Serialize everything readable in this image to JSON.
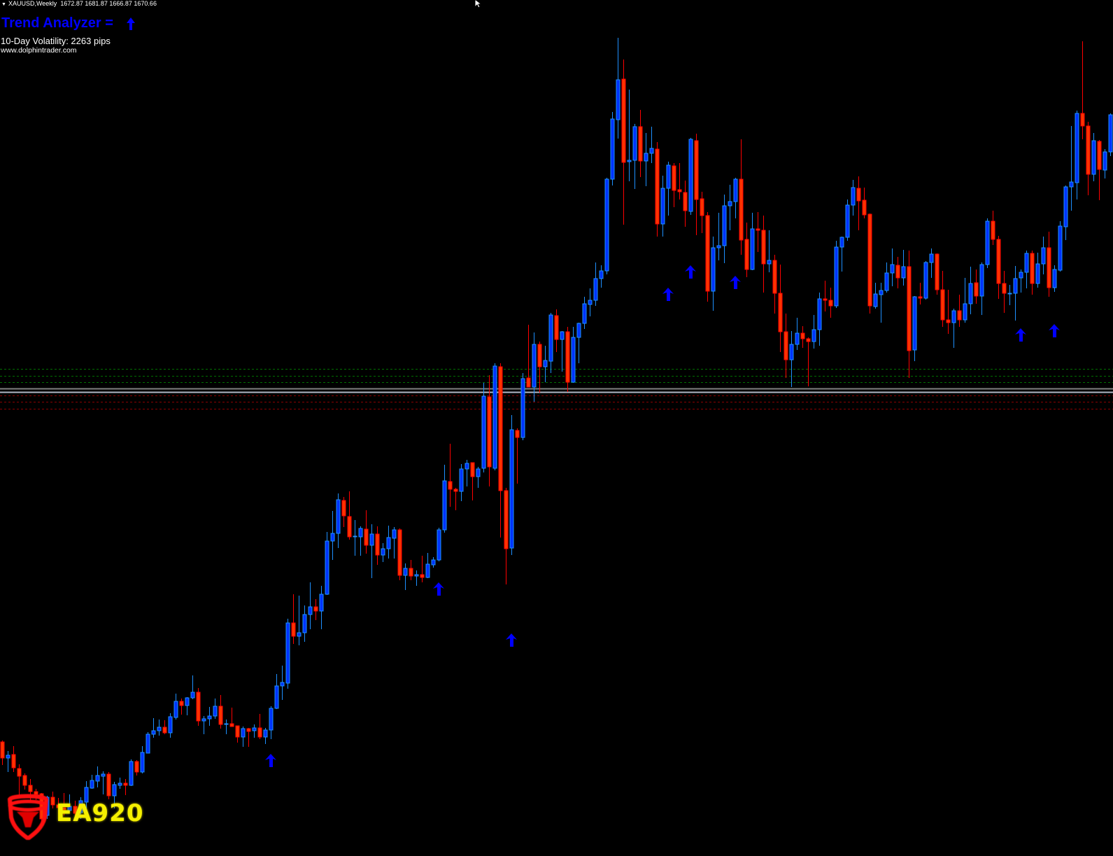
{
  "header": {
    "symbol_label": "XAUUSD,Weekly",
    "ohlc_label": "1672.87 1681.87 1666.87 1670.66"
  },
  "indicator": {
    "title": "Trend Analyzer =",
    "trend_icon": "arrow-up-icon",
    "volatility_label": "10-Day Volatility: 2263 pips",
    "website": "www.dolphintrader.com"
  },
  "logo": {
    "text": "EA920",
    "icon": "bull-shield-icon"
  },
  "colors": {
    "background": "#000000",
    "bull_body": "#0033ff",
    "bull_outline": "#1e90ff",
    "bear_body": "#ff3300",
    "bear_outline": "#ff0000",
    "signal_arrow": "#0000ff",
    "title": "#0000ff",
    "level_green": "#007000",
    "level_red": "#8b0000",
    "level_gray": "#808080",
    "level_light": "#b0b8c8"
  },
  "chart_data": {
    "type": "candlestick",
    "title": "",
    "xlabel": "",
    "ylabel": "",
    "grid": false,
    "legend": "none",
    "candle_format": [
      "open",
      "high",
      "low",
      "close"
    ],
    "candles": [
      [
        940,
        942,
        907,
        917
      ],
      [
        917,
        927,
        897,
        921
      ],
      [
        922,
        934,
        897,
        903
      ],
      [
        902,
        908,
        864,
        891
      ],
      [
        892,
        895,
        872,
        878
      ],
      [
        878,
        887,
        856,
        869
      ],
      [
        869,
        873,
        857,
        865
      ],
      [
        866,
        867,
        822,
        830
      ],
      [
        835,
        863,
        830,
        861
      ],
      [
        861,
        869,
        845,
        850
      ],
      [
        850,
        860,
        837,
        846
      ],
      [
        846,
        867,
        835,
        843
      ],
      [
        842,
        865,
        840,
        848
      ],
      [
        848,
        856,
        827,
        838
      ],
      [
        839,
        861,
        830,
        856
      ],
      [
        854,
        884,
        840,
        875
      ],
      [
        874,
        893,
        873,
        885
      ],
      [
        884,
        905,
        875,
        892
      ],
      [
        891,
        898,
        865,
        894
      ],
      [
        894,
        897,
        858,
        863
      ],
      [
        863,
        883,
        845,
        879
      ],
      [
        878,
        889,
        873,
        881
      ],
      [
        881,
        887,
        864,
        878
      ],
      [
        878,
        915,
        877,
        912
      ],
      [
        912,
        914,
        892,
        897
      ],
      [
        897,
        934,
        895,
        925
      ],
      [
        924,
        954,
        924,
        951
      ],
      [
        951,
        974,
        946,
        956
      ],
      [
        956,
        972,
        949,
        961
      ],
      [
        961,
        971,
        951,
        953
      ],
      [
        953,
        981,
        946,
        976
      ],
      [
        975,
        1009,
        972,
        998
      ],
      [
        998,
        1002,
        979,
        992
      ],
      [
        992,
        1004,
        978,
        1003
      ],
      [
        1003,
        1035,
        1001,
        1011
      ],
      [
        1011,
        1017,
        963,
        970
      ],
      [
        970,
        977,
        951,
        973
      ],
      [
        973,
        990,
        963,
        977
      ],
      [
        977,
        1002,
        973,
        991
      ],
      [
        991,
        1007,
        959,
        965
      ],
      [
        966,
        972,
        951,
        966
      ],
      [
        966,
        989,
        962,
        962
      ],
      [
        963,
        963,
        939,
        947
      ],
      [
        947,
        962,
        933,
        959
      ],
      [
        959,
        960,
        933,
        955
      ],
      [
        956,
        965,
        946,
        960
      ],
      [
        960,
        980,
        944,
        947
      ],
      [
        947,
        960,
        937,
        957
      ],
      [
        957,
        991,
        944,
        988
      ],
      [
        988,
        1037,
        987,
        1020
      ],
      [
        1020,
        1049,
        1000,
        1025
      ],
      [
        1024,
        1116,
        1016,
        1110
      ],
      [
        1110,
        1151,
        1080,
        1091
      ],
      [
        1091,
        1149,
        1078,
        1096
      ],
      [
        1096,
        1135,
        1083,
        1122
      ],
      [
        1122,
        1168,
        1101,
        1133
      ],
      [
        1133,
        1144,
        1114,
        1127
      ],
      [
        1127,
        1163,
        1101,
        1151
      ],
      [
        1151,
        1240,
        1150,
        1227
      ],
      [
        1227,
        1270,
        1200,
        1238
      ],
      [
        1238,
        1295,
        1217,
        1286
      ],
      [
        1285,
        1290,
        1247,
        1263
      ],
      [
        1262,
        1298,
        1229,
        1233
      ],
      [
        1234,
        1257,
        1206,
        1234
      ],
      [
        1233,
        1248,
        1206,
        1245
      ],
      [
        1244,
        1271,
        1209,
        1221
      ],
      [
        1221,
        1251,
        1174,
        1237
      ],
      [
        1237,
        1248,
        1193,
        1207
      ],
      [
        1207,
        1224,
        1197,
        1216
      ],
      [
        1216,
        1249,
        1202,
        1232
      ],
      [
        1231,
        1247,
        1202,
        1243
      ],
      [
        1243,
        1245,
        1171,
        1178
      ],
      [
        1178,
        1195,
        1157,
        1188
      ],
      [
        1188,
        1200,
        1171,
        1177
      ],
      [
        1177,
        1185,
        1163,
        1179
      ],
      [
        1179,
        1206,
        1168,
        1175
      ],
      [
        1175,
        1210,
        1174,
        1194
      ],
      [
        1193,
        1204,
        1189,
        1200
      ],
      [
        1200,
        1246,
        1198,
        1243
      ],
      [
        1243,
        1336,
        1239,
        1313
      ],
      [
        1312,
        1366,
        1276,
        1301
      ],
      [
        1301,
        1303,
        1271,
        1298
      ],
      [
        1298,
        1337,
        1284,
        1330
      ],
      [
        1330,
        1343,
        1305,
        1338
      ],
      [
        1339,
        1339,
        1285,
        1319
      ],
      [
        1319,
        1333,
        1303,
        1330
      ],
      [
        1331,
        1453,
        1325,
        1434
      ],
      [
        1433,
        1464,
        1305,
        1333
      ],
      [
        1331,
        1481,
        1328,
        1477
      ],
      [
        1476,
        1481,
        1232,
        1299
      ],
      [
        1299,
        1303,
        1165,
        1216
      ],
      [
        1217,
        1407,
        1207,
        1386
      ],
      [
        1385,
        1388,
        1309,
        1375
      ],
      [
        1375,
        1467,
        1371,
        1459
      ],
      [
        1460,
        1536,
        1447,
        1447
      ],
      [
        1447,
        1525,
        1426,
        1508
      ],
      [
        1508,
        1512,
        1439,
        1476
      ],
      [
        1476,
        1506,
        1454,
        1485
      ],
      [
        1484,
        1553,
        1467,
        1550
      ],
      [
        1549,
        1558,
        1497,
        1515
      ],
      [
        1515,
        1527,
        1469,
        1526
      ],
      [
        1526,
        1533,
        1440,
        1454
      ],
      [
        1454,
        1533,
        1453,
        1518
      ],
      [
        1518,
        1539,
        1481,
        1538
      ],
      [
        1538,
        1576,
        1530,
        1566
      ],
      [
        1565,
        1588,
        1548,
        1571
      ],
      [
        1571,
        1625,
        1563,
        1602
      ],
      [
        1602,
        1621,
        1589,
        1613
      ],
      [
        1613,
        1746,
        1608,
        1744
      ],
      [
        1744,
        1840,
        1735,
        1830
      ],
      [
        1829,
        1946,
        1802,
        1886
      ],
      [
        1887,
        1915,
        1679,
        1768
      ],
      [
        1769,
        1872,
        1741,
        1771
      ],
      [
        1771,
        1823,
        1730,
        1819
      ],
      [
        1819,
        1843,
        1747,
        1770
      ],
      [
        1770,
        1810,
        1734,
        1781
      ],
      [
        1781,
        1819,
        1767,
        1788
      ],
      [
        1787,
        1797,
        1662,
        1680
      ],
      [
        1680,
        1749,
        1662,
        1731
      ],
      [
        1731,
        1769,
        1692,
        1764
      ],
      [
        1763,
        1767,
        1704,
        1728
      ],
      [
        1729,
        1767,
        1715,
        1726
      ],
      [
        1725,
        1742,
        1676,
        1699
      ],
      [
        1698,
        1803,
        1693,
        1801
      ],
      [
        1799,
        1809,
        1664,
        1715
      ],
      [
        1716,
        1726,
        1667,
        1692
      ],
      [
        1692,
        1697,
        1569,
        1584
      ],
      [
        1584,
        1662,
        1556,
        1646
      ],
      [
        1646,
        1696,
        1628,
        1649
      ],
      [
        1649,
        1722,
        1624,
        1706
      ],
      [
        1706,
        1736,
        1671,
        1712
      ],
      [
        1712,
        1746,
        1688,
        1744
      ],
      [
        1744,
        1801,
        1636,
        1657
      ],
      [
        1658,
        1682,
        1604,
        1615
      ],
      [
        1615,
        1696,
        1614,
        1673
      ],
      [
        1673,
        1697,
        1640,
        1671
      ],
      [
        1671,
        1692,
        1582,
        1623
      ],
      [
        1623,
        1671,
        1611,
        1628
      ],
      [
        1628,
        1636,
        1552,
        1581
      ],
      [
        1581,
        1622,
        1497,
        1526
      ],
      [
        1526,
        1552,
        1460,
        1486
      ],
      [
        1486,
        1527,
        1447,
        1508
      ],
      [
        1508,
        1546,
        1500,
        1524
      ],
      [
        1524,
        1534,
        1503,
        1516
      ],
      [
        1516,
        1518,
        1448,
        1512
      ],
      [
        1512,
        1550,
        1502,
        1529
      ],
      [
        1529,
        1582,
        1506,
        1573
      ],
      [
        1573,
        1599,
        1555,
        1571
      ],
      [
        1571,
        1589,
        1546,
        1563
      ],
      [
        1563,
        1656,
        1560,
        1647
      ],
      [
        1647,
        1662,
        1612,
        1661
      ],
      [
        1661,
        1715,
        1656,
        1707
      ],
      [
        1707,
        1743,
        1692,
        1732
      ],
      [
        1731,
        1748,
        1671,
        1713
      ],
      [
        1714,
        1732,
        1688,
        1693
      ],
      [
        1694,
        1695,
        1552,
        1563
      ],
      [
        1562,
        1596,
        1559,
        1580
      ],
      [
        1579,
        1596,
        1539,
        1585
      ],
      [
        1585,
        1625,
        1582,
        1610
      ],
      [
        1610,
        1645,
        1591,
        1622
      ],
      [
        1621,
        1633,
        1588,
        1603
      ],
      [
        1603,
        1643,
        1592,
        1619
      ],
      [
        1619,
        1642,
        1460,
        1499
      ],
      [
        1500,
        1577,
        1484,
        1576
      ],
      [
        1576,
        1596,
        1565,
        1574
      ],
      [
        1574,
        1627,
        1572,
        1625
      ],
      [
        1625,
        1645,
        1603,
        1637
      ],
      [
        1637,
        1638,
        1579,
        1586
      ],
      [
        1586,
        1613,
        1533,
        1543
      ],
      [
        1543,
        1586,
        1523,
        1539
      ],
      [
        1539,
        1559,
        1503,
        1556
      ],
      [
        1556,
        1579,
        1533,
        1543
      ],
      [
        1543,
        1603,
        1539,
        1566
      ],
      [
        1566,
        1619,
        1551,
        1595
      ],
      [
        1596,
        1615,
        1566,
        1577
      ],
      [
        1577,
        1625,
        1550,
        1622
      ],
      [
        1622,
        1688,
        1617,
        1684
      ],
      [
        1684,
        1699,
        1650,
        1658
      ],
      [
        1658,
        1663,
        1573,
        1595
      ],
      [
        1595,
        1613,
        1553,
        1581
      ],
      [
        1581,
        1593,
        1564,
        1581
      ],
      [
        1581,
        1620,
        1542,
        1602
      ],
      [
        1603,
        1615,
        1582,
        1611
      ],
      [
        1611,
        1642,
        1588,
        1638
      ],
      [
        1638,
        1642,
        1579,
        1595
      ],
      [
        1595,
        1639,
        1589,
        1623
      ],
      [
        1623,
        1662,
        1608,
        1646
      ],
      [
        1646,
        1669,
        1576,
        1589
      ],
      [
        1589,
        1621,
        1583,
        1615
      ],
      [
        1614,
        1684,
        1612,
        1677
      ],
      [
        1676,
        1735,
        1657,
        1733
      ],
      [
        1733,
        1820,
        1699,
        1740
      ],
      [
        1739,
        1842,
        1715,
        1838
      ],
      [
        1838,
        1941,
        1801,
        1820
      ],
      [
        1820,
        1826,
        1721,
        1751
      ],
      [
        1751,
        1810,
        1741,
        1799
      ],
      [
        1798,
        1800,
        1714,
        1758
      ],
      [
        1757,
        1787,
        1745,
        1783
      ],
      [
        1783,
        1838,
        1777,
        1836
      ]
    ],
    "buy_signals": [
      {
        "bar": 48,
        "level": 923
      },
      {
        "bar": 78,
        "level": 1168
      },
      {
        "bar": 91,
        "level": 1095
      },
      {
        "bar": 119,
        "level": 1589
      },
      {
        "bar": 123,
        "level": 1621
      },
      {
        "bar": 131,
        "level": 1606
      },
      {
        "bar": 182,
        "level": 1531
      },
      {
        "bar": 188,
        "level": 1537
      }
    ],
    "levels": [
      {
        "value": 1473,
        "style": "dashed",
        "color": "green"
      },
      {
        "value": 1463,
        "style": "dashed",
        "color": "green"
      },
      {
        "value": 1454,
        "style": "dashed",
        "color": "green"
      },
      {
        "value": 1445,
        "style": "solid",
        "color": "gray"
      },
      {
        "value": 1440,
        "style": "solid",
        "color": "light"
      },
      {
        "value": 1435,
        "style": "dashed",
        "color": "red"
      },
      {
        "value": 1426,
        "style": "dashed",
        "color": "red"
      },
      {
        "value": 1416,
        "style": "dashed",
        "color": "red"
      }
    ]
  }
}
